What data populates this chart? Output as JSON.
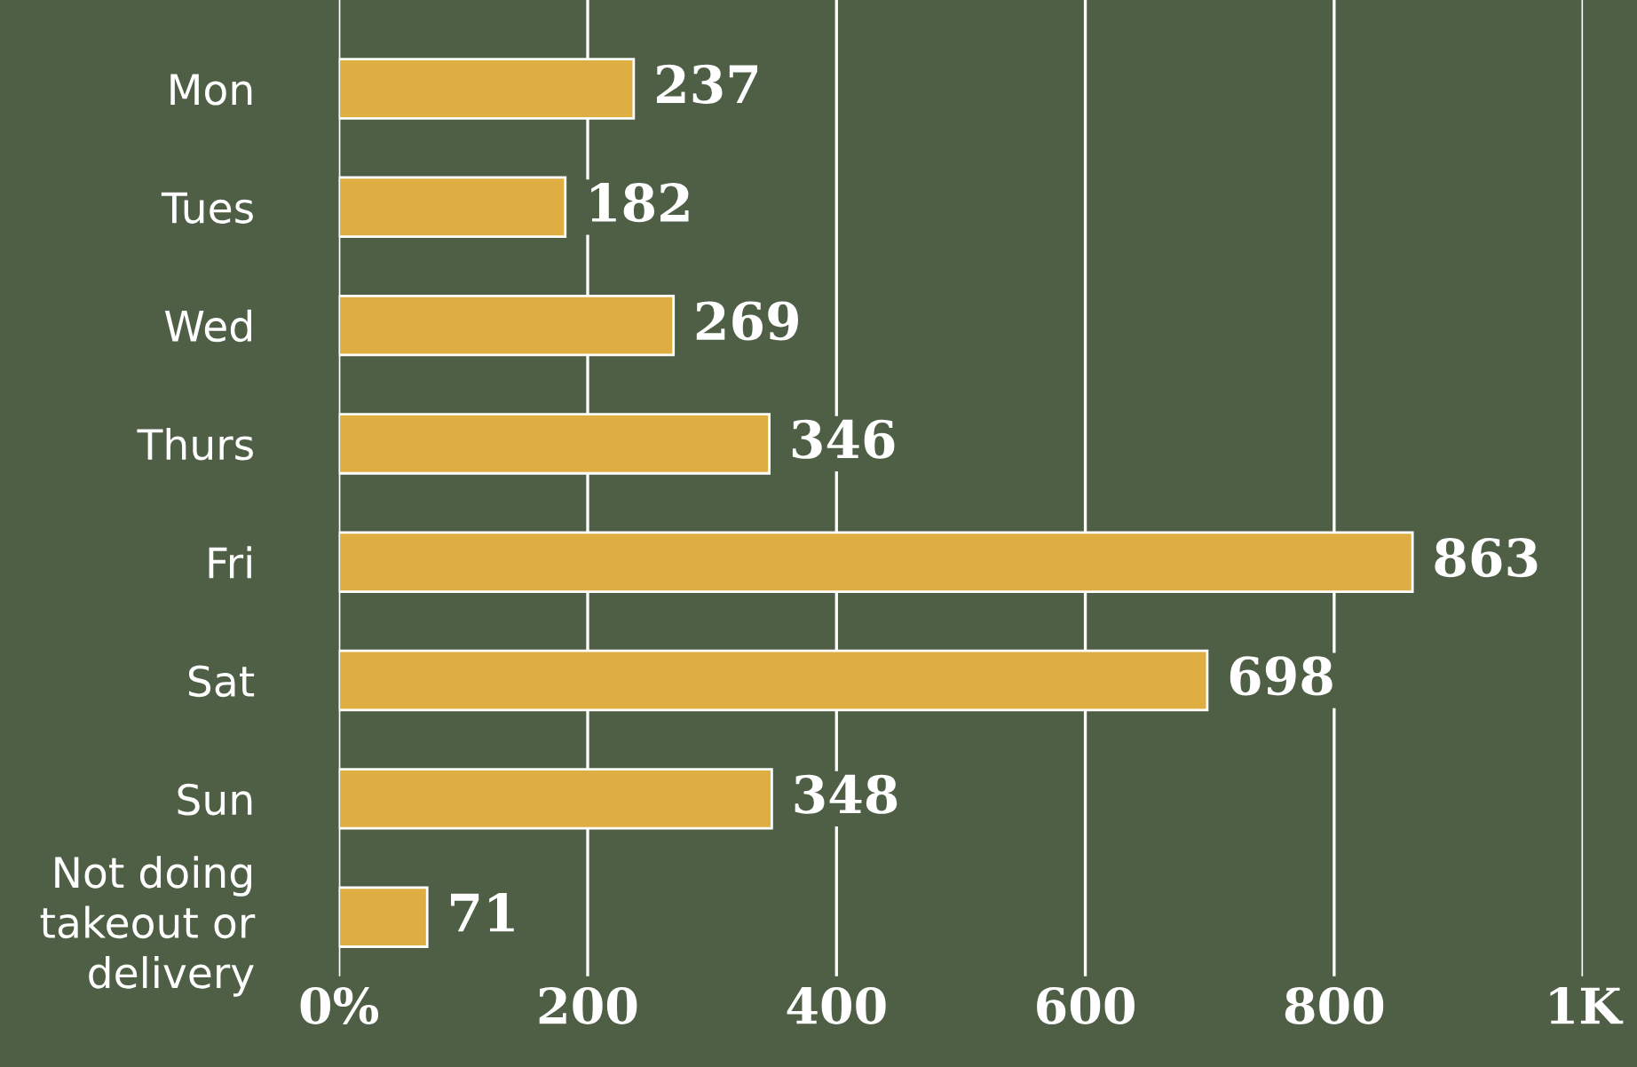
{
  "chart_data": {
    "type": "bar",
    "orientation": "horizontal",
    "categories": [
      "Mon",
      "Tues",
      "Wed",
      "Thurs",
      "Fri",
      "Sat",
      "Sun",
      "Not doing\ntakeout or\ndelivery"
    ],
    "values": [
      237,
      182,
      269,
      346,
      863,
      698,
      348,
      71
    ],
    "color": "#dfae43",
    "xlim": [
      0,
      1000
    ],
    "xticks": [
      {
        "value": 0,
        "label": "0%"
      },
      200,
      400,
      600,
      800,
      {
        "value": 1000,
        "label": "1K"
      }
    ],
    "grid": "x",
    "data_labels": true
  }
}
